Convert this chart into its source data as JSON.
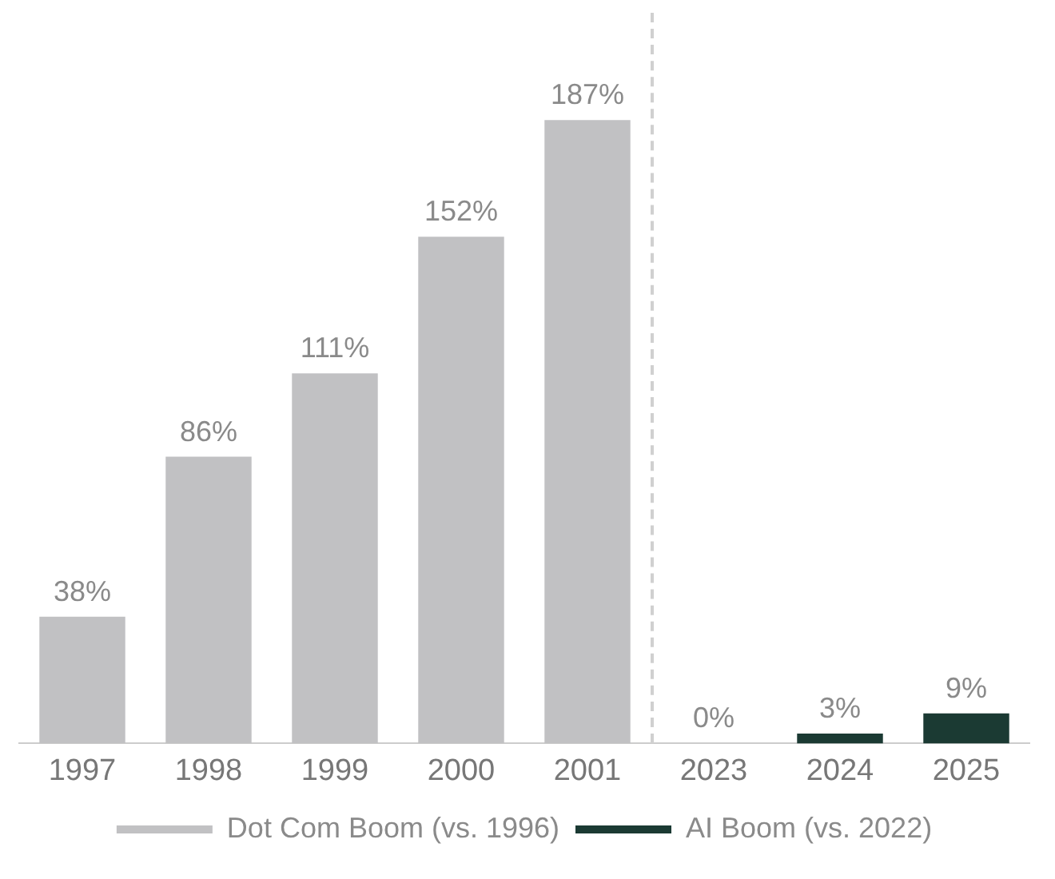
{
  "chart_data": {
    "type": "bar",
    "categories": [
      "1997",
      "1998",
      "1999",
      "2000",
      "2001",
      "2023",
      "2024",
      "2025"
    ],
    "series": [
      {
        "name": "Dot Com Boom (vs. 1996)",
        "color": "#c1c1c3",
        "values": [
          38,
          86,
          111,
          152,
          187,
          null,
          null,
          null
        ],
        "value_labels": [
          "38%",
          "86%",
          "111%",
          "152%",
          "187%",
          null,
          null,
          null
        ]
      },
      {
        "name": "AI Boom (vs. 2022)",
        "color": "#1b3a33",
        "values": [
          null,
          null,
          null,
          null,
          null,
          0,
          3,
          9
        ],
        "value_labels": [
          null,
          null,
          null,
          null,
          null,
          "0%",
          "3%",
          "9%"
        ]
      }
    ],
    "legend": "bottom",
    "grid": false,
    "tick_labels": "x"
  }
}
